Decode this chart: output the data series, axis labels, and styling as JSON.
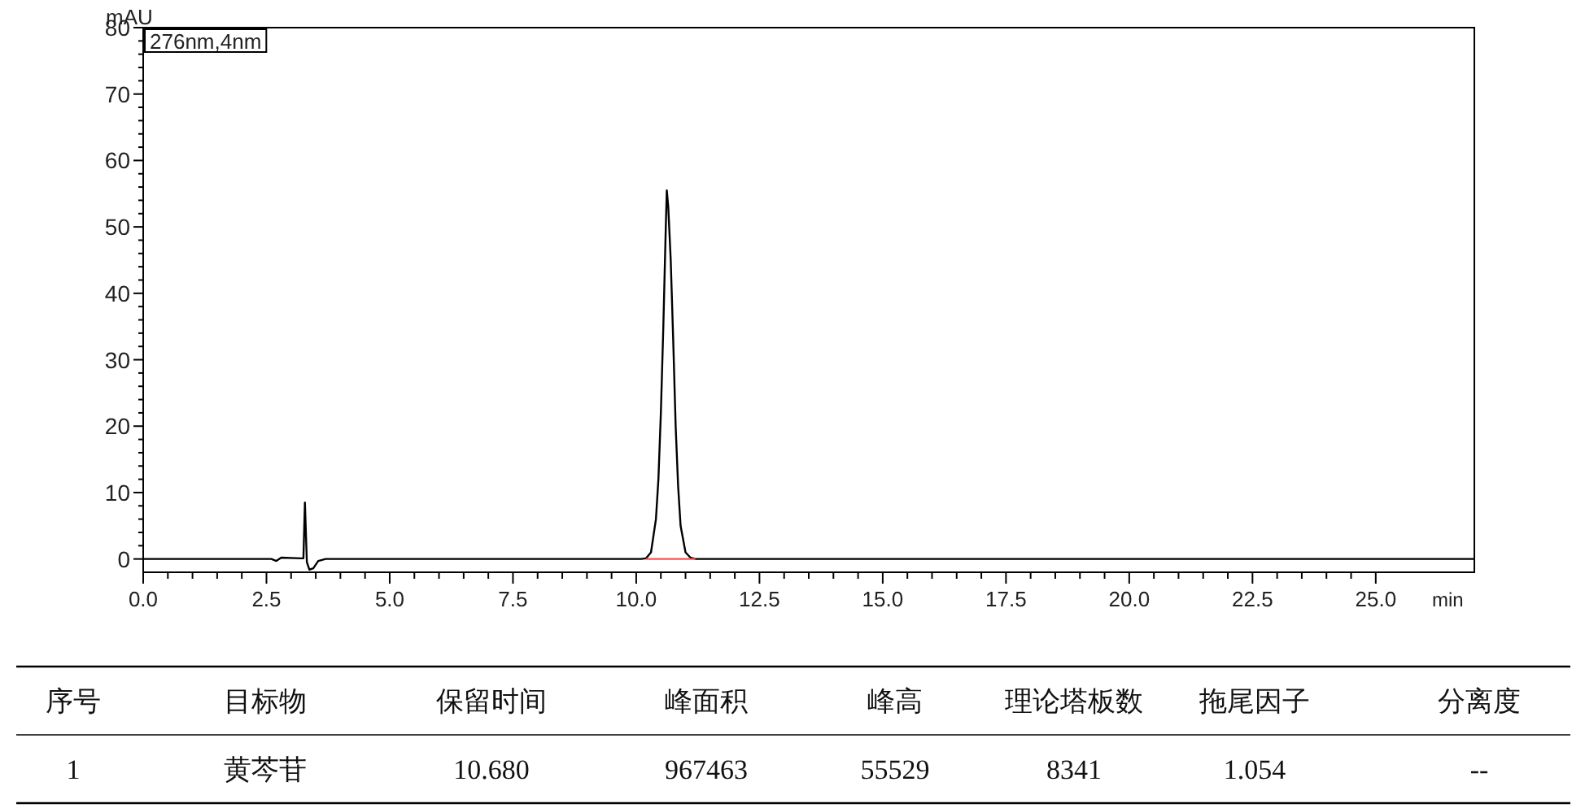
{
  "chart_data": {
    "type": "line",
    "xlabel": "min",
    "ylabel": "mAU",
    "legend": "top left",
    "marker": "none",
    "line_style": "solid",
    "xlim": [
      0,
      27
    ],
    "ylim": [
      -2,
      80
    ],
    "xticks": [
      {
        "value": 0,
        "label": "0.0"
      },
      {
        "value": 2.5,
        "label": "2.5"
      },
      {
        "value": 5,
        "label": "5.0"
      },
      {
        "value": 7.5,
        "label": "7.5"
      },
      {
        "value": 10,
        "label": "10.0"
      },
      {
        "value": 12.5,
        "label": "12.5"
      },
      {
        "value": 15,
        "label": "15.0"
      },
      {
        "value": 17.5,
        "label": "17.5"
      },
      {
        "value": 20,
        "label": "20.0"
      },
      {
        "value": 22.5,
        "label": "22.5"
      },
      {
        "value": 25,
        "label": "25.0"
      }
    ],
    "yticks": [
      0,
      10,
      20,
      30,
      40,
      50,
      60,
      70,
      80
    ],
    "series": [
      {
        "name": "276nm,4nm",
        "color": "#000000",
        "x": [
          0,
          2.6,
          2.7,
          2.8,
          3.2,
          3.25,
          3.28,
          3.32,
          3.37,
          3.45,
          3.55,
          3.7,
          10.1,
          10.2,
          10.3,
          10.4,
          10.45,
          10.5,
          10.55,
          10.6,
          10.62,
          10.65,
          10.7,
          10.75,
          10.8,
          10.85,
          10.9,
          11.0,
          11.1,
          11.2,
          27
        ],
        "values": [
          0,
          0,
          -0.3,
          0.2,
          0.1,
          0.1,
          8.5,
          -0.5,
          -1.6,
          -1.4,
          -0.3,
          0,
          0,
          0.1,
          1,
          6,
          12,
          22,
          35,
          50,
          55.5,
          53,
          45,
          33,
          20,
          11,
          5,
          1,
          0.2,
          0,
          0
        ]
      },
      {
        "color": "#ff5050",
        "x": [
          10.2,
          11.2
        ],
        "values": [
          0,
          0
        ]
      }
    ],
    "annotations": [
      "序号",
      "目标物",
      "保留时间",
      "峰面积",
      "峰高",
      "理论塔板数",
      "拖尾因子",
      "分离度",
      "1",
      "黄芩苷",
      "10.680",
      "967463",
      "55529",
      "8341",
      "1.054",
      "--"
    ]
  }
}
